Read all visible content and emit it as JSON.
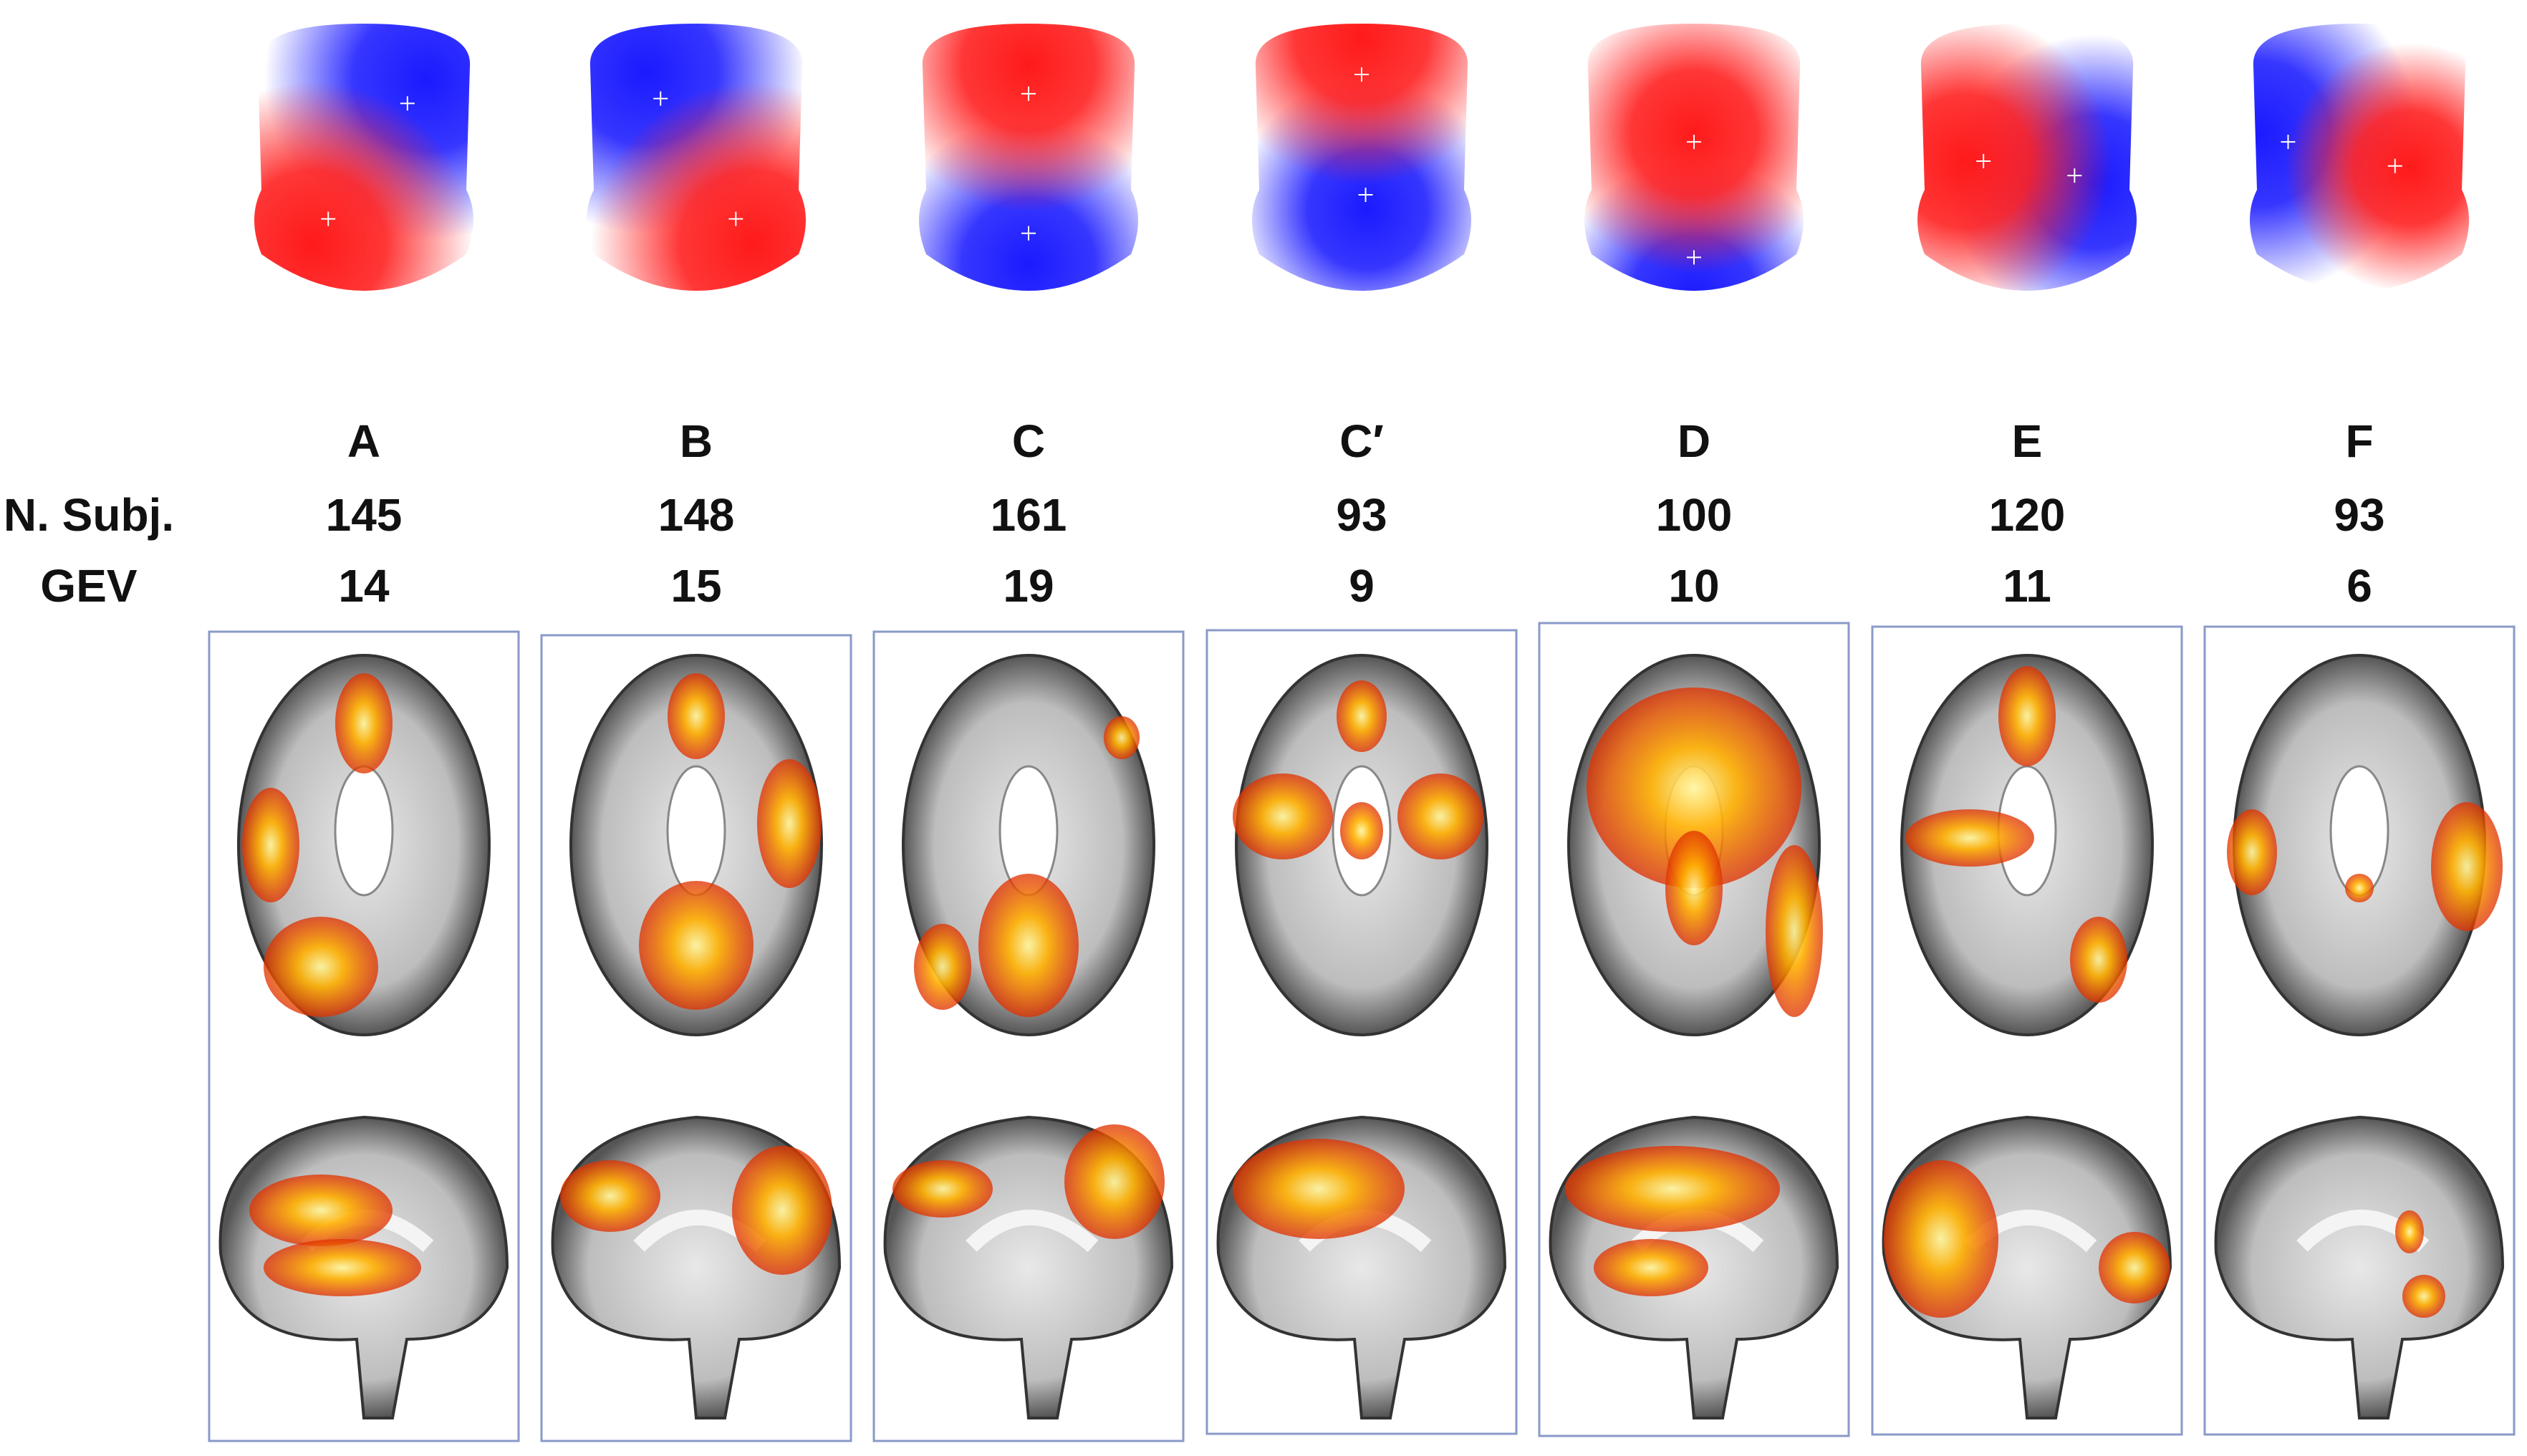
{
  "row_labels": [
    "N. Subj.",
    "GEV"
  ],
  "columns": [
    {
      "label": "A",
      "n_subj": 145,
      "gev": 14
    },
    {
      "label": "B",
      "n_subj": 148,
      "gev": 15
    },
    {
      "label": "C",
      "n_subj": 161,
      "gev": 19
    },
    {
      "label": "C′",
      "n_subj": 93,
      "gev": 9
    },
    {
      "label": "D",
      "n_subj": 100,
      "gev": 10
    },
    {
      "label": "E",
      "n_subj": 120,
      "gev": 11
    },
    {
      "label": "F",
      "n_subj": 93,
      "gev": 6
    }
  ]
}
